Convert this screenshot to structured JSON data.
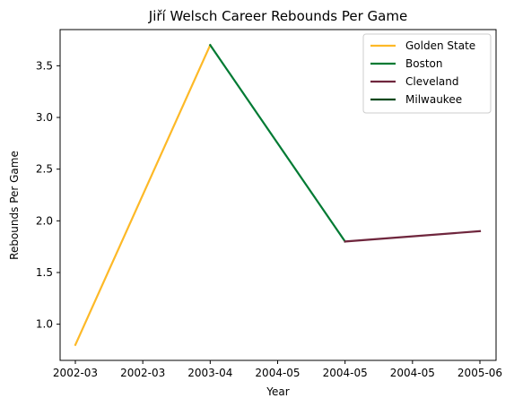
{
  "chart_data": {
    "type": "line",
    "title": "Jiří Welsch Career Rebounds Per Game",
    "xlabel": "Year",
    "ylabel": "Rebounds Per Game",
    "x_tick_labels": [
      "2002-03",
      "2002-03",
      "2003-04",
      "2004-05",
      "2004-05",
      "2004-05",
      "2005-06"
    ],
    "ylim": [
      0.65,
      3.85
    ],
    "y_ticks": [
      1.0,
      1.5,
      2.0,
      2.5,
      3.0,
      3.5
    ],
    "y_tick_labels": [
      "1.0",
      "1.5",
      "2.0",
      "2.5",
      "3.0",
      "3.5"
    ],
    "grid": false,
    "legend_placement": "top-right",
    "series": [
      {
        "name": "Golden State",
        "color": "#FDB927",
        "x": [
          "2002-03",
          "2003-04"
        ],
        "values": [
          0.8,
          3.7
        ]
      },
      {
        "name": "Boston",
        "color": "#007A33",
        "x": [
          "2003-04",
          "2004-05"
        ],
        "values": [
          3.7,
          1.8
        ]
      },
      {
        "name": "Cleveland",
        "color": "#6F263D",
        "x": [
          "2004-05",
          "2005-06"
        ],
        "values": [
          1.8,
          1.9
        ]
      },
      {
        "name": "Milwaukee",
        "color": "#00471B",
        "x": [],
        "values": []
      }
    ]
  }
}
